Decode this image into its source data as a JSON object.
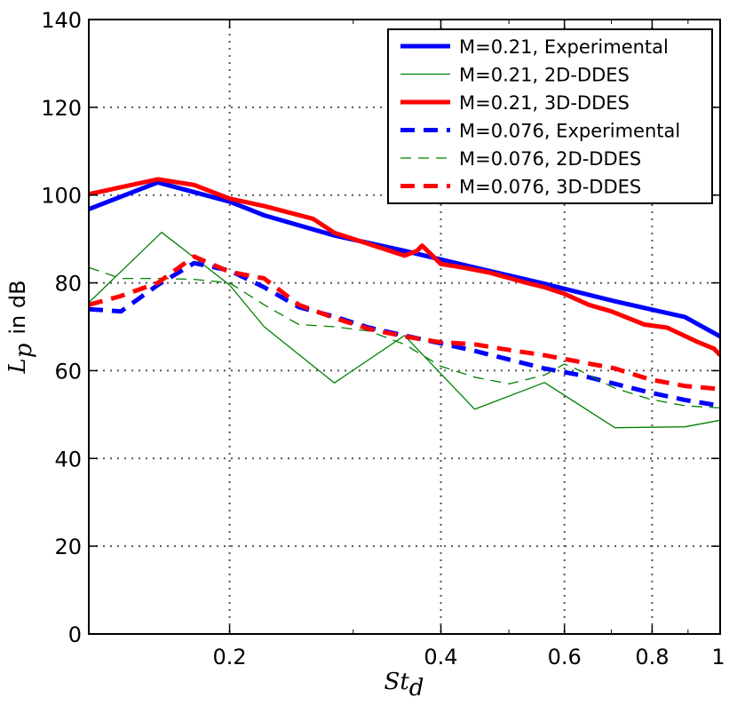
{
  "chart_data": {
    "type": "line",
    "title": "",
    "xlabel": "St_d",
    "ylabel": "L_p in dB",
    "xscale": "log",
    "xlim": [
      0.126,
      1.0
    ],
    "ylim": [
      0,
      140
    ],
    "grid": true,
    "legend_position": "top-right",
    "xticks": [
      0.2,
      0.4,
      0.6,
      0.8,
      1.0
    ],
    "xtick_labels": [
      "0.2",
      "0.4",
      "0.6",
      "0.8",
      "1"
    ],
    "yticks": [
      0,
      20,
      40,
      60,
      80,
      100,
      120,
      140
    ],
    "ytick_labels": [
      "0",
      "20",
      "40",
      "60",
      "80",
      "100",
      "120",
      "140"
    ],
    "ylabel_text": "in dB",
    "ylabel_symbol_base": "L",
    "ylabel_symbol_sub": "p",
    "xlabel_symbol_base": "St",
    "xlabel_symbol_sub": "d",
    "series": [
      {
        "name": "M=0.21, Experimental",
        "color": "#0000ff",
        "style": "solid",
        "width": "thick",
        "x": [
          0.126,
          0.158,
          0.2,
          0.224,
          0.282,
          0.355,
          0.447,
          0.562,
          0.708,
          0.891,
          1.0
        ],
        "y": [
          96.8,
          102.9,
          98.5,
          95.4,
          90.8,
          87.3,
          83.5,
          79.8,
          75.8,
          72.2,
          67.8
        ]
      },
      {
        "name": "M=0.21, 2D-DDES",
        "color": "#008000",
        "style": "solid",
        "width": "thin",
        "x": [
          0.126,
          0.16,
          0.2,
          0.224,
          0.282,
          0.355,
          0.447,
          0.562,
          0.708,
          0.891,
          1.0
        ],
        "y": [
          75.5,
          91.5,
          79.5,
          70.0,
          57.2,
          68.0,
          51.2,
          57.3,
          47.0,
          47.2,
          48.7
        ]
      },
      {
        "name": "M=0.21, 3D-DDES",
        "color": "#ff0000",
        "style": "solid",
        "width": "thick",
        "x": [
          0.126,
          0.158,
          0.178,
          0.2,
          0.224,
          0.263,
          0.282,
          0.355,
          0.37,
          0.376,
          0.4,
          0.43,
          0.47,
          0.53,
          0.562,
          0.6,
          0.65,
          0.7,
          0.78,
          0.84,
          0.93,
          0.98,
          1.0
        ],
        "y": [
          100.2,
          103.6,
          102.3,
          99.2,
          97.5,
          94.6,
          91.4,
          86.2,
          87.3,
          88.5,
          84.3,
          83.5,
          82.3,
          80.0,
          79.0,
          77.5,
          75.0,
          73.5,
          70.5,
          69.8,
          66.5,
          65.0,
          63.5
        ]
      },
      {
        "name": "M=0.076, Experimental",
        "color": "#0000ff",
        "style": "dashed",
        "width": "thick",
        "x": [
          0.126,
          0.14,
          0.158,
          0.178,
          0.2,
          0.224,
          0.251,
          0.282,
          0.316,
          0.355,
          0.398,
          0.447,
          0.501,
          0.562,
          0.631,
          0.708,
          0.794,
          0.891,
          1.0
        ],
        "y": [
          74.0,
          73.5,
          79.5,
          84.5,
          82.8,
          79.0,
          74.5,
          72.3,
          69.8,
          68.0,
          66.3,
          64.5,
          62.5,
          60.5,
          59.0,
          57.0,
          55.0,
          53.3,
          52.0
        ]
      },
      {
        "name": "M=0.076, 2D-DDES",
        "color": "#008000",
        "style": "dashed",
        "width": "thin",
        "x": [
          0.126,
          0.14,
          0.158,
          0.178,
          0.2,
          0.224,
          0.251,
          0.282,
          0.316,
          0.355,
          0.4,
          0.447,
          0.501,
          0.562,
          0.6,
          0.631,
          0.708,
          0.794,
          0.891,
          1.0
        ],
        "y": [
          83.5,
          81.0,
          81.0,
          80.8,
          80.0,
          75.0,
          70.5,
          70.0,
          69.0,
          66.0,
          61.0,
          58.5,
          57.0,
          59.0,
          61.5,
          60.0,
          56.0,
          53.5,
          52.0,
          51.5
        ]
      },
      {
        "name": "M=0.076, 3D-DDES",
        "color": "#ff0000",
        "style": "dashed",
        "width": "thick",
        "x": [
          0.126,
          0.14,
          0.158,
          0.178,
          0.2,
          0.224,
          0.251,
          0.282,
          0.316,
          0.355,
          0.398,
          0.447,
          0.501,
          0.562,
          0.631,
          0.708,
          0.794,
          0.891,
          1.0
        ],
        "y": [
          75.0,
          77.0,
          80.0,
          86.0,
          82.5,
          81.0,
          75.0,
          72.0,
          69.5,
          67.8,
          66.5,
          66.0,
          64.7,
          63.5,
          62.0,
          60.5,
          58.0,
          56.5,
          55.8
        ]
      }
    ]
  }
}
